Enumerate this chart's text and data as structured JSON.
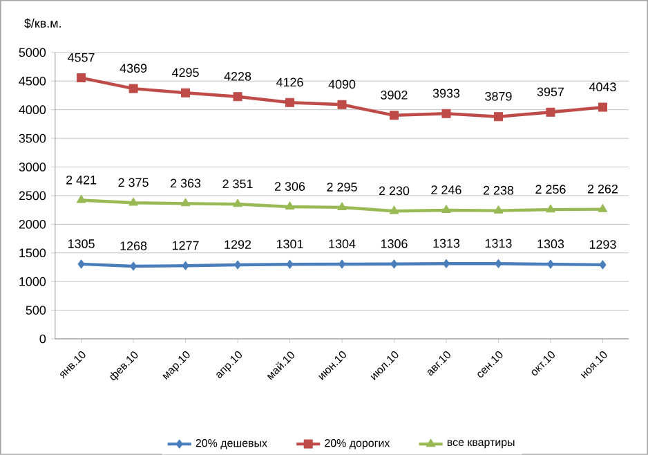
{
  "chart_data": {
    "type": "line",
    "ylabel": "$/кв.м.",
    "categories": [
      "янв.10",
      "фев.10",
      "мар.10",
      "апр.10",
      "май.10",
      "июн.10",
      "июл.10",
      "авг.10",
      "сен.10",
      "окт.10",
      "ноя.10"
    ],
    "series": [
      {
        "name": "20% дешевых",
        "color": "#4a7ebb",
        "marker": "diamond",
        "values": [
          1305,
          1268,
          1277,
          1292,
          1301,
          1304,
          1306,
          1313,
          1313,
          1303,
          1293
        ],
        "value_labels": [
          "1305",
          "1268",
          "1277",
          "1292",
          "1301",
          "1304",
          "1306",
          "1313",
          "1313",
          "1303",
          "1293"
        ]
      },
      {
        "name": "20% дорогих",
        "color": "#be4b48",
        "marker": "square",
        "values": [
          4557,
          4369,
          4295,
          4228,
          4126,
          4090,
          3902,
          3933,
          3879,
          3957,
          4043
        ],
        "value_labels": [
          "4557",
          "4369",
          "4295",
          "4228",
          "4126",
          "4090",
          "3902",
          "3933",
          "3879",
          "3957",
          "4043"
        ]
      },
      {
        "name": "все квартиры",
        "color": "#98b954",
        "marker": "triangle",
        "values": [
          2421,
          2375,
          2363,
          2351,
          2306,
          2295,
          2230,
          2246,
          2238,
          2256,
          2262
        ],
        "value_labels": [
          "2 421",
          "2 375",
          "2 363",
          "2 351",
          "2 306",
          "2 295",
          "2 230",
          "2 246",
          "2 238",
          "2 256",
          "2 262"
        ]
      }
    ],
    "ylim": [
      0,
      5000
    ],
    "yticks": [
      0,
      500,
      1000,
      1500,
      2000,
      2500,
      3000,
      3500,
      4000,
      4500,
      5000
    ],
    "grid": "y",
    "legend": "bottom"
  }
}
